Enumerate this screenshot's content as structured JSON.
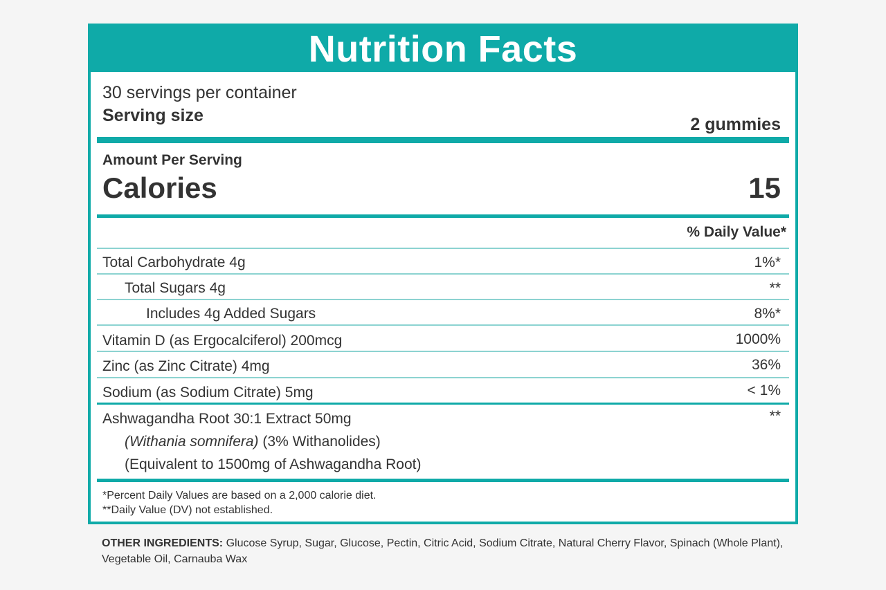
{
  "title": "Nutrition Facts",
  "servings_per_container": "30 servings per container",
  "serving_size_label": "Serving size",
  "serving_size_value": "2 gummies",
  "amount_per_serving": "Amount Per Serving",
  "calories_label": "Calories",
  "calories_value": "15",
  "daily_value_header": "% Daily Value*",
  "nutrients": [
    {
      "label": "Total Carbohydrate 4g",
      "value": "1%*"
    },
    {
      "label": "Total Sugars 4g",
      "value": "**"
    },
    {
      "label": "Includes 4g Added Sugars",
      "value": "8%*"
    },
    {
      "label": "Vitamin D (as Ergocalciferol) 200mcg",
      "value": "1000%"
    },
    {
      "label": "Zinc (as Zinc Citrate) 4mg",
      "value": "36%"
    },
    {
      "label": "Sodium (as Sodium Citrate) 5mg",
      "value": "< 1%"
    }
  ],
  "botanical": {
    "label": "Ashwagandha Root 30:1 Extract 50mg",
    "value": "**",
    "latin_name": "(Withania somnifera)",
    "standardization": "(3% Withanolides)",
    "equivalent": "(Equivalent to 1500mg of Ashwagandha Root)"
  },
  "footnotes": [
    "*Percent Daily Values are based on a 2,000 calorie diet.",
    "**Daily Value (DV) not established."
  ],
  "other_ingredients": {
    "label": "OTHER INGREDIENTS:",
    "text": "Glucose Syrup, Sugar, Glucose, Pectin, Citric Acid, Sodium Citrate, Natural Cherry Flavor, Spinach (Whole Plant), Vegetable Oil, Carnauba Wax"
  },
  "colors": {
    "accent": "#0faaa8",
    "divider": "#8cd3d1",
    "text": "#333333",
    "background": "#f5f5f5"
  }
}
